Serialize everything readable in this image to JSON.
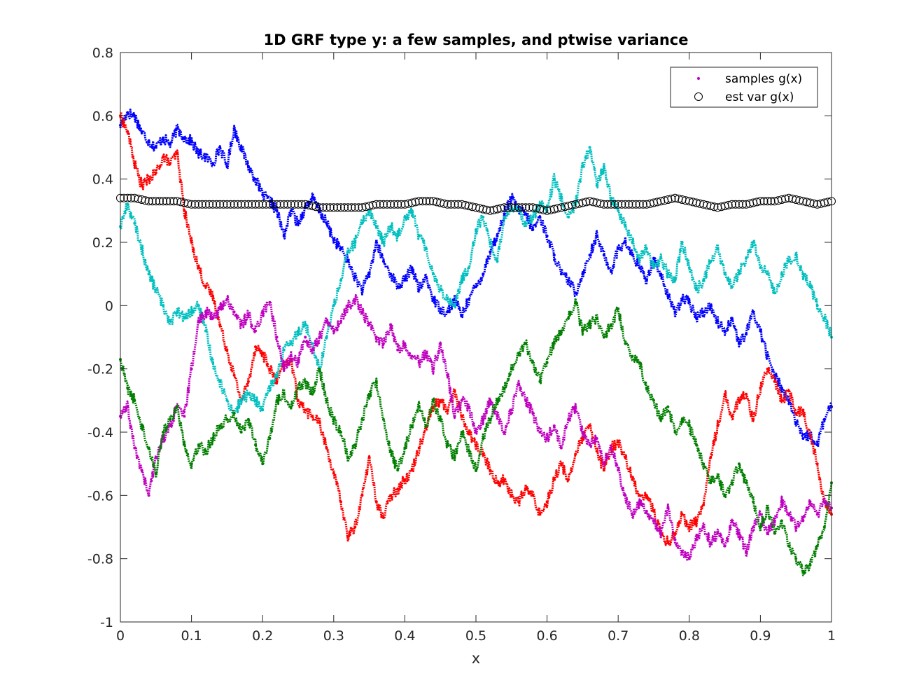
{
  "chart_data": {
    "type": "scatter",
    "title": "1D GRF type y: a few samples, and ptwise variance",
    "xlabel": "x",
    "ylabel": "",
    "xlim": [
      0,
      1
    ],
    "ylim": [
      -1,
      0.8
    ],
    "xticks": [
      0,
      0.1,
      0.2,
      0.3,
      0.4,
      0.5,
      0.6,
      0.7,
      0.8,
      0.9,
      1
    ],
    "xtick_labels": [
      "0",
      "0.1",
      "0.2",
      "0.3",
      "0.4",
      "0.5",
      "0.6",
      "0.7",
      "0.8",
      "0.9",
      "1"
    ],
    "yticks": [
      -1,
      -0.8,
      -0.6,
      -0.4,
      -0.2,
      0,
      0.2,
      0.4,
      0.6,
      0.8
    ],
    "ytick_labels": [
      "-1",
      "-0.8",
      "-0.6",
      "-0.4",
      "-0.2",
      "0",
      "0.2",
      "0.4",
      "0.6",
      "0.8"
    ],
    "grid": false,
    "legend_position": "top-right",
    "legend": [
      {
        "label": "samples g(x)",
        "marker": "dot",
        "color": "#bf00bf"
      },
      {
        "label": "est var g(x)",
        "marker": "circle",
        "color": "#000000"
      }
    ],
    "series": [
      {
        "color": "#0000ff",
        "marker": "dot",
        "x": [
          0,
          0.01,
          0.02,
          0.03,
          0.04,
          0.05,
          0.06,
          0.07,
          0.08,
          0.09,
          0.1,
          0.11,
          0.12,
          0.13,
          0.14,
          0.15,
          0.16,
          0.17,
          0.18,
          0.19,
          0.2,
          0.21,
          0.22,
          0.23,
          0.24,
          0.25,
          0.26,
          0.27,
          0.28,
          0.29,
          0.3,
          0.31,
          0.32,
          0.33,
          0.34,
          0.35,
          0.36,
          0.37,
          0.38,
          0.39,
          0.4,
          0.41,
          0.42,
          0.43,
          0.44,
          0.45,
          0.46,
          0.47,
          0.48,
          0.49,
          0.5,
          0.51,
          0.52,
          0.53,
          0.54,
          0.55,
          0.56,
          0.57,
          0.58,
          0.59,
          0.6,
          0.61,
          0.62,
          0.63,
          0.64,
          0.65,
          0.66,
          0.67,
          0.68,
          0.69,
          0.7,
          0.71,
          0.72,
          0.73,
          0.74,
          0.75,
          0.76,
          0.77,
          0.78,
          0.79,
          0.8,
          0.81,
          0.82,
          0.83,
          0.84,
          0.85,
          0.86,
          0.87,
          0.88,
          0.89,
          0.9,
          0.91,
          0.92,
          0.93,
          0.94,
          0.95,
          0.96,
          0.97,
          0.98,
          0.99,
          1
        ],
        "y": [
          0.57,
          0.61,
          0.6,
          0.55,
          0.52,
          0.5,
          0.53,
          0.51,
          0.56,
          0.53,
          0.52,
          0.48,
          0.47,
          0.45,
          0.5,
          0.44,
          0.56,
          0.5,
          0.44,
          0.4,
          0.35,
          0.33,
          0.3,
          0.22,
          0.3,
          0.26,
          0.31,
          0.34,
          0.3,
          0.26,
          0.21,
          0.18,
          0.14,
          0.09,
          0.05,
          0.1,
          0.2,
          0.14,
          0.1,
          0.06,
          0.08,
          0.12,
          0.05,
          0.09,
          0.02,
          -0.01,
          -0.02,
          0.02,
          -0.03,
          0.02,
          0.06,
          0.1,
          0.17,
          0.22,
          0.29,
          0.34,
          0.3,
          0.29,
          0.24,
          0.28,
          0.22,
          0.16,
          0.1,
          0.08,
          0.04,
          0.1,
          0.16,
          0.22,
          0.16,
          0.11,
          0.18,
          0.2,
          0.16,
          0.12,
          0.08,
          0.15,
          0.1,
          0.03,
          -0.02,
          0.02,
          0.01,
          -0.04,
          -0.02,
          0.0,
          -0.05,
          -0.08,
          -0.04,
          -0.12,
          -0.09,
          -0.02,
          -0.08,
          -0.16,
          -0.22,
          -0.26,
          -0.3,
          -0.37,
          -0.42,
          -0.41,
          -0.44,
          -0.36,
          -0.32
        ]
      },
      {
        "color": "#ff0000",
        "marker": "dot",
        "x": [
          0,
          0.01,
          0.02,
          0.03,
          0.04,
          0.05,
          0.06,
          0.07,
          0.08,
          0.09,
          0.1,
          0.11,
          0.12,
          0.13,
          0.14,
          0.15,
          0.16,
          0.17,
          0.18,
          0.19,
          0.2,
          0.21,
          0.22,
          0.23,
          0.24,
          0.25,
          0.26,
          0.27,
          0.28,
          0.29,
          0.3,
          0.31,
          0.32,
          0.33,
          0.34,
          0.35,
          0.36,
          0.37,
          0.38,
          0.39,
          0.4,
          0.41,
          0.42,
          0.43,
          0.44,
          0.45,
          0.46,
          0.47,
          0.48,
          0.49,
          0.5,
          0.51,
          0.52,
          0.53,
          0.54,
          0.55,
          0.56,
          0.57,
          0.58,
          0.59,
          0.6,
          0.61,
          0.62,
          0.63,
          0.64,
          0.65,
          0.66,
          0.67,
          0.68,
          0.69,
          0.7,
          0.71,
          0.72,
          0.73,
          0.74,
          0.75,
          0.76,
          0.77,
          0.78,
          0.79,
          0.8,
          0.81,
          0.82,
          0.83,
          0.84,
          0.85,
          0.86,
          0.87,
          0.88,
          0.89,
          0.9,
          0.91,
          0.92,
          0.93,
          0.94,
          0.95,
          0.96,
          0.97,
          0.98,
          0.99,
          1
        ],
        "y": [
          0.6,
          0.55,
          0.45,
          0.38,
          0.4,
          0.42,
          0.47,
          0.45,
          0.48,
          0.3,
          0.2,
          0.12,
          0.06,
          0.03,
          -0.06,
          -0.14,
          -0.22,
          -0.3,
          -0.24,
          -0.13,
          -0.15,
          -0.2,
          -0.24,
          -0.19,
          -0.17,
          -0.3,
          -0.33,
          -0.35,
          -0.37,
          -0.45,
          -0.53,
          -0.62,
          -0.73,
          -0.7,
          -0.6,
          -0.48,
          -0.62,
          -0.67,
          -0.6,
          -0.58,
          -0.55,
          -0.52,
          -0.45,
          -0.38,
          -0.32,
          -0.3,
          -0.33,
          -0.27,
          -0.35,
          -0.4,
          -0.44,
          -0.47,
          -0.52,
          -0.56,
          -0.55,
          -0.6,
          -0.62,
          -0.58,
          -0.6,
          -0.66,
          -0.62,
          -0.55,
          -0.5,
          -0.55,
          -0.47,
          -0.42,
          -0.38,
          -0.46,
          -0.52,
          -0.45,
          -0.43,
          -0.48,
          -0.55,
          -0.6,
          -0.6,
          -0.65,
          -0.72,
          -0.75,
          -0.72,
          -0.66,
          -0.7,
          -0.68,
          -0.63,
          -0.48,
          -0.38,
          -0.28,
          -0.35,
          -0.3,
          -0.28,
          -0.36,
          -0.26,
          -0.2,
          -0.24,
          -0.3,
          -0.27,
          -0.34,
          -0.33,
          -0.41,
          -0.5,
          -0.62,
          -0.66
        ]
      },
      {
        "color": "#00bfbf",
        "marker": "dot",
        "x": [
          0,
          0.01,
          0.02,
          0.03,
          0.04,
          0.05,
          0.06,
          0.07,
          0.08,
          0.09,
          0.1,
          0.11,
          0.12,
          0.13,
          0.14,
          0.15,
          0.16,
          0.17,
          0.18,
          0.19,
          0.2,
          0.21,
          0.22,
          0.23,
          0.24,
          0.25,
          0.26,
          0.27,
          0.28,
          0.29,
          0.3,
          0.31,
          0.32,
          0.33,
          0.34,
          0.35,
          0.36,
          0.37,
          0.38,
          0.39,
          0.4,
          0.41,
          0.42,
          0.43,
          0.44,
          0.45,
          0.46,
          0.47,
          0.48,
          0.49,
          0.5,
          0.51,
          0.52,
          0.53,
          0.54,
          0.55,
          0.56,
          0.57,
          0.58,
          0.59,
          0.6,
          0.61,
          0.62,
          0.63,
          0.64,
          0.65,
          0.66,
          0.67,
          0.68,
          0.69,
          0.7,
          0.71,
          0.72,
          0.73,
          0.74,
          0.75,
          0.76,
          0.77,
          0.78,
          0.79,
          0.8,
          0.81,
          0.82,
          0.83,
          0.84,
          0.85,
          0.86,
          0.87,
          0.88,
          0.89,
          0.9,
          0.91,
          0.92,
          0.93,
          0.94,
          0.95,
          0.96,
          0.97,
          0.98,
          0.99,
          1
        ],
        "y": [
          0.25,
          0.32,
          0.26,
          0.18,
          0.1,
          0.05,
          0.0,
          -0.05,
          -0.02,
          -0.04,
          -0.02,
          0.0,
          -0.08,
          -0.18,
          -0.24,
          -0.3,
          -0.34,
          -0.3,
          -0.28,
          -0.3,
          -0.33,
          -0.26,
          -0.22,
          -0.14,
          -0.12,
          -0.08,
          -0.06,
          -0.12,
          -0.2,
          -0.1,
          0.0,
          0.08,
          0.17,
          0.2,
          0.26,
          0.3,
          0.25,
          0.2,
          0.25,
          0.22,
          0.28,
          0.3,
          0.22,
          0.18,
          0.1,
          0.05,
          0.02,
          0.0,
          0.08,
          0.12,
          0.24,
          0.28,
          0.2,
          0.14,
          0.28,
          0.31,
          0.3,
          0.26,
          0.28,
          0.32,
          0.3,
          0.4,
          0.34,
          0.28,
          0.32,
          0.44,
          0.5,
          0.38,
          0.44,
          0.34,
          0.3,
          0.25,
          0.2,
          0.15,
          0.18,
          0.12,
          0.15,
          0.1,
          0.08,
          0.2,
          0.12,
          0.05,
          0.08,
          0.14,
          0.18,
          0.1,
          0.06,
          0.1,
          0.15,
          0.2,
          0.12,
          0.1,
          0.04,
          0.1,
          0.14,
          0.16,
          0.1,
          0.06,
          0.0,
          -0.04,
          -0.1
        ]
      },
      {
        "color": "#bf00bf",
        "marker": "dot",
        "x": [
          0,
          0.01,
          0.02,
          0.03,
          0.04,
          0.05,
          0.06,
          0.07,
          0.08,
          0.09,
          0.1,
          0.11,
          0.12,
          0.13,
          0.14,
          0.15,
          0.16,
          0.17,
          0.18,
          0.19,
          0.2,
          0.21,
          0.22,
          0.23,
          0.24,
          0.25,
          0.26,
          0.27,
          0.28,
          0.29,
          0.3,
          0.31,
          0.32,
          0.33,
          0.34,
          0.35,
          0.36,
          0.37,
          0.38,
          0.39,
          0.4,
          0.41,
          0.42,
          0.43,
          0.44,
          0.45,
          0.46,
          0.47,
          0.48,
          0.49,
          0.5,
          0.51,
          0.52,
          0.53,
          0.54,
          0.55,
          0.56,
          0.57,
          0.58,
          0.59,
          0.6,
          0.61,
          0.62,
          0.63,
          0.64,
          0.65,
          0.66,
          0.67,
          0.68,
          0.69,
          0.7,
          0.71,
          0.72,
          0.73,
          0.74,
          0.75,
          0.76,
          0.77,
          0.78,
          0.79,
          0.8,
          0.81,
          0.82,
          0.83,
          0.84,
          0.85,
          0.86,
          0.87,
          0.88,
          0.89,
          0.9,
          0.91,
          0.92,
          0.93,
          0.94,
          0.95,
          0.96,
          0.97,
          0.98,
          0.99,
          1
        ],
        "y": [
          -0.35,
          -0.32,
          -0.45,
          -0.52,
          -0.6,
          -0.48,
          -0.42,
          -0.38,
          -0.32,
          -0.35,
          -0.2,
          -0.05,
          -0.02,
          -0.04,
          -0.01,
          0.02,
          -0.02,
          -0.06,
          -0.03,
          -0.08,
          -0.02,
          0.01,
          -0.1,
          -0.2,
          -0.16,
          -0.18,
          -0.1,
          -0.14,
          -0.1,
          -0.05,
          -0.08,
          -0.05,
          0.0,
          0.02,
          -0.02,
          -0.06,
          -0.1,
          -0.12,
          -0.06,
          -0.14,
          -0.12,
          -0.16,
          -0.18,
          -0.15,
          -0.2,
          -0.12,
          -0.22,
          -0.35,
          -0.3,
          -0.32,
          -0.4,
          -0.36,
          -0.3,
          -0.35,
          -0.4,
          -0.33,
          -0.25,
          -0.3,
          -0.34,
          -0.4,
          -0.42,
          -0.38,
          -0.45,
          -0.36,
          -0.32,
          -0.4,
          -0.44,
          -0.42,
          -0.5,
          -0.45,
          -0.52,
          -0.6,
          -0.66,
          -0.62,
          -0.65,
          -0.68,
          -0.72,
          -0.64,
          -0.74,
          -0.78,
          -0.8,
          -0.74,
          -0.7,
          -0.75,
          -0.72,
          -0.76,
          -0.68,
          -0.72,
          -0.78,
          -0.7,
          -0.66,
          -0.72,
          -0.68,
          -0.62,
          -0.66,
          -0.7,
          -0.68,
          -0.62,
          -0.66,
          -0.62,
          -0.64
        ]
      },
      {
        "color": "#007f00",
        "marker": "dot",
        "x": [
          0,
          0.01,
          0.02,
          0.03,
          0.04,
          0.05,
          0.06,
          0.07,
          0.08,
          0.09,
          0.1,
          0.11,
          0.12,
          0.13,
          0.14,
          0.15,
          0.16,
          0.17,
          0.18,
          0.19,
          0.2,
          0.21,
          0.22,
          0.23,
          0.24,
          0.25,
          0.26,
          0.27,
          0.28,
          0.29,
          0.3,
          0.31,
          0.32,
          0.33,
          0.34,
          0.35,
          0.36,
          0.37,
          0.38,
          0.39,
          0.4,
          0.41,
          0.42,
          0.43,
          0.44,
          0.45,
          0.46,
          0.47,
          0.48,
          0.49,
          0.5,
          0.51,
          0.52,
          0.53,
          0.54,
          0.55,
          0.56,
          0.57,
          0.58,
          0.59,
          0.6,
          0.61,
          0.62,
          0.63,
          0.64,
          0.65,
          0.66,
          0.67,
          0.68,
          0.69,
          0.7,
          0.71,
          0.72,
          0.73,
          0.74,
          0.75,
          0.76,
          0.77,
          0.78,
          0.79,
          0.8,
          0.81,
          0.82,
          0.83,
          0.84,
          0.85,
          0.86,
          0.87,
          0.88,
          0.89,
          0.9,
          0.91,
          0.92,
          0.93,
          0.94,
          0.95,
          0.96,
          0.97,
          0.98,
          0.99,
          1
        ],
        "y": [
          -0.17,
          -0.26,
          -0.3,
          -0.38,
          -0.45,
          -0.53,
          -0.4,
          -0.36,
          -0.32,
          -0.44,
          -0.5,
          -0.44,
          -0.46,
          -0.42,
          -0.38,
          -0.36,
          -0.34,
          -0.4,
          -0.36,
          -0.44,
          -0.5,
          -0.42,
          -0.3,
          -0.28,
          -0.32,
          -0.26,
          -0.24,
          -0.28,
          -0.2,
          -0.3,
          -0.36,
          -0.4,
          -0.48,
          -0.44,
          -0.36,
          -0.28,
          -0.24,
          -0.36,
          -0.46,
          -0.52,
          -0.45,
          -0.38,
          -0.32,
          -0.38,
          -0.3,
          -0.36,
          -0.44,
          -0.48,
          -0.4,
          -0.46,
          -0.52,
          -0.42,
          -0.36,
          -0.3,
          -0.26,
          -0.2,
          -0.15,
          -0.12,
          -0.18,
          -0.24,
          -0.18,
          -0.12,
          -0.08,
          -0.04,
          0.01,
          -0.08,
          -0.06,
          -0.04,
          -0.1,
          -0.06,
          -0.01,
          -0.12,
          -0.16,
          -0.18,
          -0.26,
          -0.3,
          -0.36,
          -0.32,
          -0.4,
          -0.36,
          -0.38,
          -0.44,
          -0.5,
          -0.56,
          -0.54,
          -0.6,
          -0.56,
          -0.5,
          -0.56,
          -0.62,
          -0.7,
          -0.64,
          -0.72,
          -0.68,
          -0.76,
          -0.8,
          -0.84,
          -0.82,
          -0.76,
          -0.7,
          -0.56
        ]
      }
    ],
    "variance": {
      "color": "#000000",
      "marker": "circle",
      "x": [
        0,
        0.02,
        0.04,
        0.06,
        0.08,
        0.1,
        0.12,
        0.14,
        0.16,
        0.18,
        0.2,
        0.22,
        0.24,
        0.26,
        0.28,
        0.3,
        0.32,
        0.34,
        0.36,
        0.38,
        0.4,
        0.42,
        0.44,
        0.46,
        0.48,
        0.5,
        0.52,
        0.54,
        0.56,
        0.58,
        0.6,
        0.62,
        0.64,
        0.66,
        0.68,
        0.7,
        0.72,
        0.74,
        0.76,
        0.78,
        0.8,
        0.82,
        0.84,
        0.86,
        0.88,
        0.9,
        0.92,
        0.94,
        0.96,
        0.98,
        1
      ],
      "y": [
        0.34,
        0.34,
        0.33,
        0.33,
        0.33,
        0.32,
        0.32,
        0.32,
        0.32,
        0.32,
        0.32,
        0.32,
        0.32,
        0.32,
        0.31,
        0.31,
        0.31,
        0.31,
        0.32,
        0.32,
        0.32,
        0.33,
        0.33,
        0.32,
        0.32,
        0.31,
        0.3,
        0.31,
        0.31,
        0.31,
        0.3,
        0.31,
        0.32,
        0.33,
        0.32,
        0.32,
        0.32,
        0.32,
        0.33,
        0.34,
        0.33,
        0.32,
        0.31,
        0.32,
        0.32,
        0.33,
        0.33,
        0.34,
        0.33,
        0.32,
        0.33
      ]
    }
  }
}
